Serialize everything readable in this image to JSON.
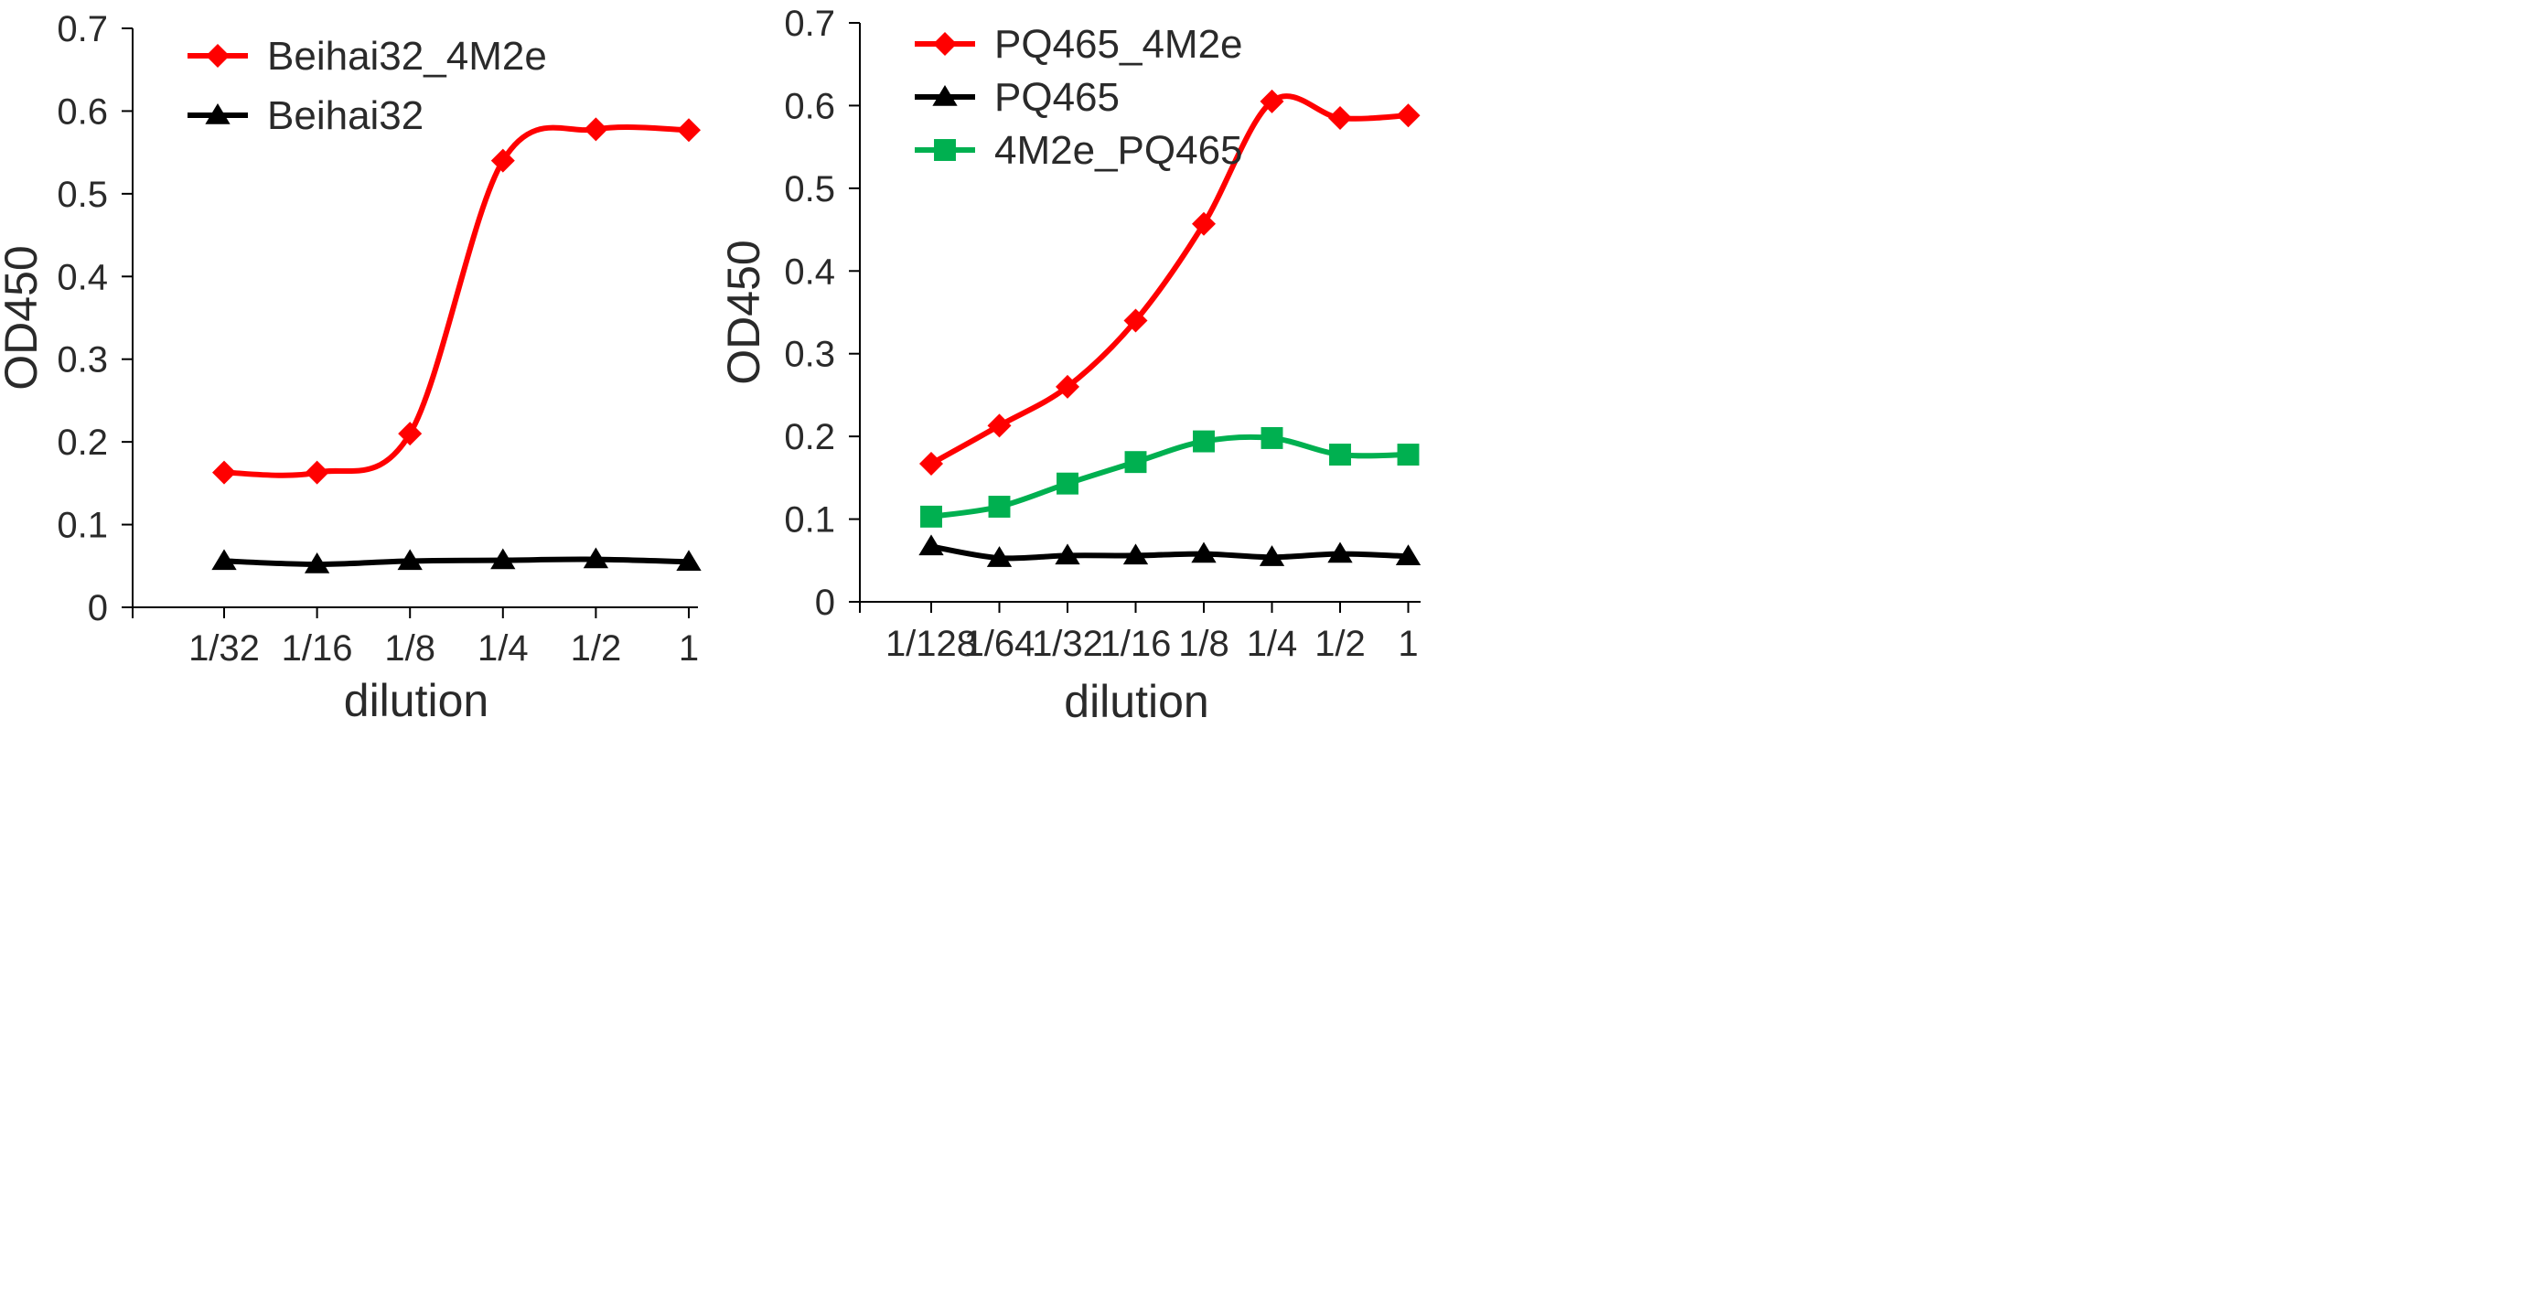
{
  "chart_data": [
    {
      "type": "line",
      "title": "",
      "xlabel": "dilution",
      "ylabel": "OD450",
      "categories": [
        "1/32",
        "1/16",
        "1/8",
        "1/4",
        "1/2",
        "1"
      ],
      "ylim": [
        0,
        0.7
      ],
      "yticks": [
        "0",
        "0.1",
        "0.2",
        "0.3",
        "0.4",
        "0.5",
        "0.6",
        "0.7"
      ],
      "grid": false,
      "legend_position": "top-left",
      "series": [
        {
          "name": "Beihai32_4M2e",
          "color": "#ff0000",
          "marker": "diamond",
          "values": [
            0.163,
            0.163,
            0.21,
            0.54,
            0.578,
            0.577
          ]
        },
        {
          "name": "Beihai32",
          "color": "#000000",
          "marker": "triangle",
          "values": [
            0.056,
            0.052,
            0.056,
            0.057,
            0.058,
            0.055
          ]
        }
      ]
    },
    {
      "type": "line",
      "title": "",
      "xlabel": "dilution",
      "ylabel": "OD450",
      "categories": [
        "1/128",
        "1/64",
        "1/32",
        "1/16",
        "1/8",
        "1/4",
        "1/2",
        "1"
      ],
      "ylim": [
        0,
        0.7
      ],
      "yticks": [
        "0",
        "0.1",
        "0.2",
        "0.3",
        "0.4",
        "0.5",
        "0.6",
        "0.7"
      ],
      "grid": false,
      "legend_position": "top-left",
      "series": [
        {
          "name": "PQ465_4M2e",
          "color": "#ff0000",
          "marker": "diamond",
          "values": [
            0.167,
            0.213,
            0.26,
            0.34,
            0.457,
            0.605,
            0.585,
            0.588
          ]
        },
        {
          "name": "PQ465",
          "color": "#000000",
          "marker": "triangle",
          "values": [
            0.067,
            0.053,
            0.056,
            0.056,
            0.058,
            0.054,
            0.058,
            0.055
          ]
        },
        {
          "name": "4M2e_PQ465",
          "color": "#00b050",
          "marker": "square",
          "values": [
            0.103,
            0.115,
            0.143,
            0.169,
            0.194,
            0.198,
            0.178,
            0.178
          ]
        }
      ]
    }
  ]
}
